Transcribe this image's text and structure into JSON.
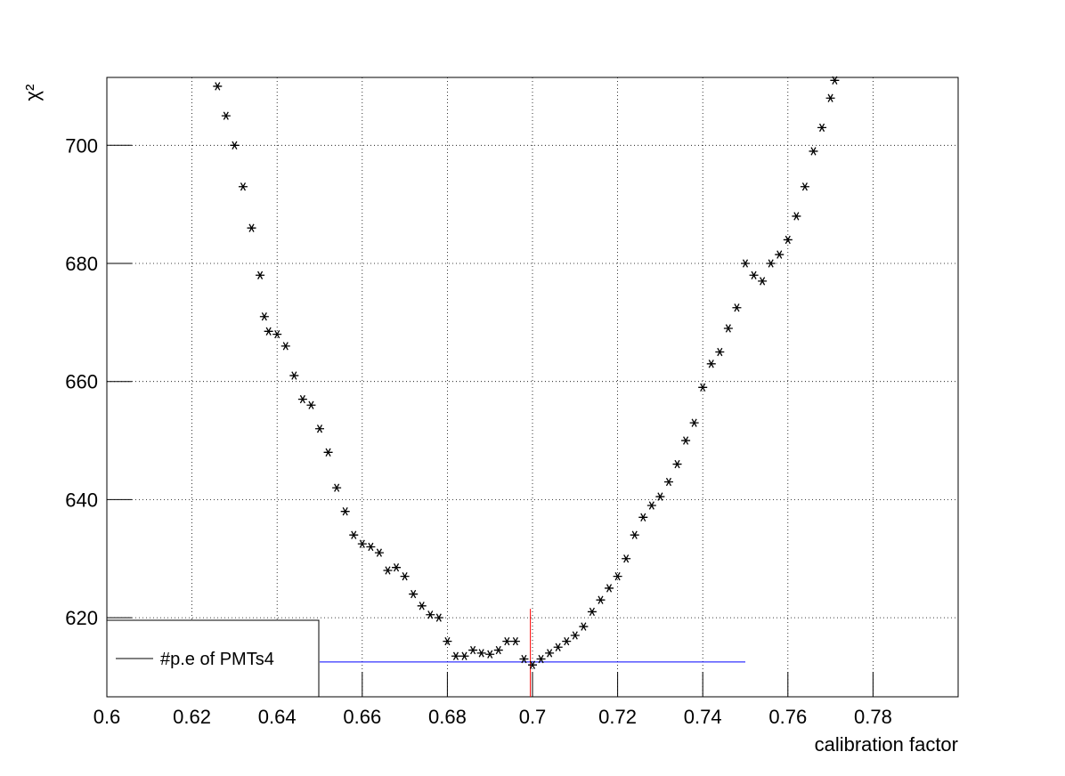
{
  "chart_data": {
    "type": "scatter",
    "xlabel": "calibration factor",
    "ylabel": "χ²",
    "xlim": [
      0.6,
      0.8
    ],
    "ylim": [
      606.6,
      711.5
    ],
    "xticks": [
      0.6,
      0.62,
      0.64,
      0.66,
      0.68,
      0.7,
      0.72,
      0.74,
      0.76,
      0.78
    ],
    "yticks": [
      620,
      640,
      660,
      680,
      700
    ],
    "grid": true,
    "legend": "bottom-left",
    "series": [
      {
        "name": "#p.e of PMTs4",
        "color": "#000000",
        "x": [
          0.626,
          0.628,
          0.63,
          0.632,
          0.634,
          0.636,
          0.637,
          0.638,
          0.64,
          0.642,
          0.644,
          0.646,
          0.648,
          0.65,
          0.652,
          0.654,
          0.656,
          0.658,
          0.66,
          0.662,
          0.664,
          0.666,
          0.668,
          0.67,
          0.672,
          0.674,
          0.676,
          0.678,
          0.68,
          0.682,
          0.684,
          0.686,
          0.688,
          0.69,
          0.692,
          0.694,
          0.696,
          0.698,
          0.7,
          0.702,
          0.704,
          0.706,
          0.708,
          0.71,
          0.712,
          0.714,
          0.716,
          0.718,
          0.72,
          0.722,
          0.724,
          0.726,
          0.728,
          0.73,
          0.732,
          0.734,
          0.736,
          0.738,
          0.74,
          0.742,
          0.744,
          0.746,
          0.748,
          0.75,
          0.752,
          0.754,
          0.756,
          0.758,
          0.76,
          0.762,
          0.764,
          0.766,
          0.768,
          0.77,
          0.771
        ],
        "values": [
          710,
          705,
          700,
          693,
          686,
          678,
          671,
          668.5,
          668,
          666,
          661,
          657,
          656,
          652,
          648,
          642,
          638,
          634,
          632.5,
          632,
          631,
          628,
          628.5,
          627,
          624,
          622,
          620.5,
          620,
          616,
          613.5,
          613.5,
          614.5,
          614,
          613.8,
          614.5,
          616,
          616,
          613,
          612,
          613,
          614,
          615,
          616,
          617,
          618.5,
          621,
          623,
          625,
          627,
          630,
          634,
          637,
          639,
          640.5,
          643,
          646,
          650,
          653,
          659,
          663,
          665,
          669,
          672.5,
          680,
          678,
          677,
          680,
          681.5,
          684,
          688,
          693,
          699,
          703,
          708,
          711
        ]
      }
    ],
    "hline": {
      "y": 612.5,
      "x": [
        0.65,
        0.75
      ],
      "color": "#0000ff"
    },
    "vline": {
      "x": 0.6995,
      "y": 621.5,
      "color": "#ff0000"
    }
  }
}
